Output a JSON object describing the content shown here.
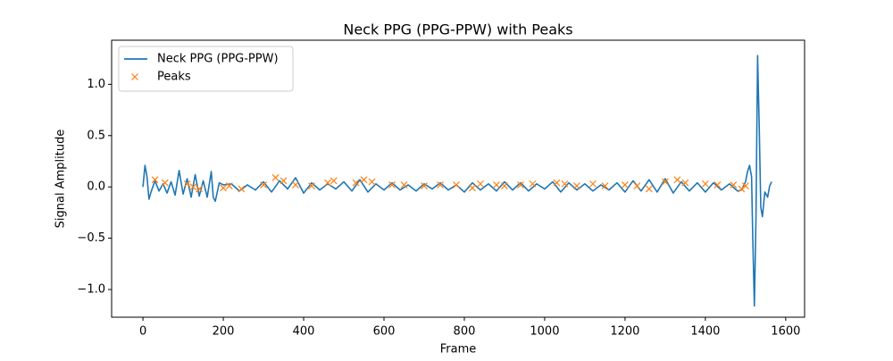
{
  "chart_data": {
    "type": "line",
    "title": "Neck PPG (PPG-PPW) with Peaks",
    "xlabel": "Frame",
    "ylabel": "Signal Amplitude",
    "xlim": [
      -78,
      1647
    ],
    "ylim": [
      -1.27,
      1.43
    ],
    "xticks": [
      0,
      200,
      400,
      600,
      800,
      1000,
      1200,
      1400,
      1600
    ],
    "yticks": [
      {
        "value": -1,
        "label": "−1.0"
      },
      {
        "value": -0.5,
        "label": "−0.5"
      },
      {
        "value": 0,
        "label": "0.0"
      },
      0.5,
      {
        "value": 1,
        "label": "1.0"
      }
    ],
    "legend": "upper left",
    "series": [
      {
        "name": "Neck PPG (PPG-PPW)",
        "color": "#1f77b4",
        "marker": "none",
        "x": [
          0,
          5,
          10,
          15,
          20,
          30,
          40,
          50,
          60,
          70,
          80,
          90,
          100,
          110,
          120,
          130,
          140,
          150,
          160,
          170,
          175,
          180,
          190,
          200,
          220,
          240,
          260,
          280,
          300,
          320,
          340,
          360,
          380,
          400,
          420,
          440,
          460,
          480,
          500,
          520,
          540,
          560,
          580,
          600,
          620,
          640,
          660,
          680,
          700,
          720,
          740,
          760,
          780,
          800,
          820,
          840,
          860,
          880,
          900,
          920,
          940,
          960,
          980,
          1000,
          1020,
          1040,
          1060,
          1080,
          1100,
          1120,
          1140,
          1160,
          1180,
          1200,
          1220,
          1240,
          1260,
          1280,
          1300,
          1320,
          1340,
          1360,
          1380,
          1400,
          1420,
          1440,
          1460,
          1480,
          1490,
          1500,
          1505,
          1510,
          1515,
          1518,
          1522,
          1526,
          1530,
          1534,
          1538,
          1542,
          1548,
          1555,
          1560,
          1565
        ],
        "values": [
          0,
          0.21,
          0.1,
          -0.12,
          -0.05,
          0.06,
          -0.04,
          0.03,
          -0.06,
          0.05,
          -0.08,
          0.16,
          -0.07,
          0.08,
          -0.1,
          0.12,
          -0.09,
          0.06,
          -0.1,
          0.15,
          -0.1,
          -0.14,
          0.04,
          0.02,
          0.03,
          -0.04,
          0.02,
          -0.03,
          0.05,
          -0.05,
          0.06,
          -0.02,
          0.09,
          -0.06,
          0.04,
          -0.03,
          0.03,
          -0.02,
          0.05,
          -0.04,
          0.07,
          -0.05,
          0.03,
          -0.03,
          0.04,
          -0.03,
          0.02,
          -0.04,
          0.03,
          -0.02,
          0.04,
          -0.03,
          0.02,
          -0.05,
          0.04,
          -0.03,
          0.03,
          -0.04,
          0.05,
          -0.03,
          0.04,
          -0.04,
          0.03,
          -0.02,
          0.05,
          -0.05,
          0.04,
          -0.03,
          0.03,
          -0.04,
          0.02,
          -0.03,
          0.04,
          -0.05,
          0.06,
          -0.04,
          0.07,
          -0.05,
          0.08,
          -0.06,
          0.05,
          -0.04,
          0.04,
          -0.05,
          0.04,
          -0.03,
          0.03,
          -0.04,
          -0.03,
          0.05,
          0.15,
          0.21,
          0.1,
          -0.5,
          -1.16,
          -0.3,
          1.28,
          0.6,
          -0.2,
          -0.29,
          -0.05,
          -0.1,
          0.01,
          0.05
        ]
      },
      {
        "name": "Peaks",
        "color": "#ff7f0e",
        "marker": "x",
        "x": [
          30,
          55,
          110,
          125,
          140,
          200,
          215,
          245,
          300,
          330,
          350,
          380,
          420,
          460,
          475,
          530,
          550,
          570,
          620,
          650,
          700,
          740,
          780,
          820,
          840,
          880,
          900,
          940,
          970,
          1030,
          1050,
          1080,
          1120,
          1150,
          1200,
          1230,
          1260,
          1300,
          1330,
          1350,
          1400,
          1430,
          1470,
          1490,
          1500
        ],
        "values": [
          0.07,
          0.04,
          0.03,
          0,
          -0.02,
          -0.01,
          0.01,
          -0.02,
          0.02,
          0.09,
          0.06,
          0.02,
          0.01,
          0.04,
          0.06,
          0.04,
          0.07,
          0.05,
          0.02,
          0.02,
          0.01,
          0.02,
          0.02,
          -0.01,
          0.03,
          0.02,
          0.01,
          0.02,
          0.03,
          0.04,
          0.03,
          0.01,
          0.03,
          0.01,
          0.02,
          0.01,
          -0.02,
          0.05,
          0.07,
          0.04,
          0.03,
          0.02,
          0.02,
          -0.02,
          0.01
        ]
      }
    ]
  }
}
